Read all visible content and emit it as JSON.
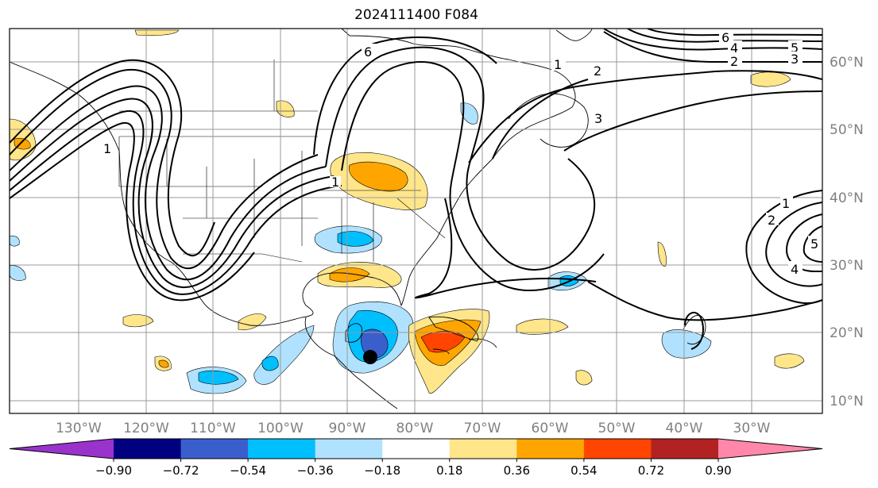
{
  "title": "2024111400 F084",
  "map": {
    "lon_labels": [
      "130°W",
      "120°W",
      "110°W",
      "100°W",
      "90°W",
      "80°W",
      "70°W",
      "60°W",
      "50°W",
      "40°W",
      "30°W"
    ],
    "lat_labels": [
      "60°N",
      "50°N",
      "40°N",
      "30°N",
      "20°N",
      "10°N"
    ],
    "contour_labels": [
      "1",
      "2",
      "3",
      "4",
      "5",
      "6"
    ],
    "storm_marker": "filled-black-dot"
  },
  "colorbar": {
    "colors": [
      "#9933cc",
      "#000080",
      "#3a5fcd",
      "#00bfff",
      "#b0e2ff",
      "#ffffff",
      "#ffe68a",
      "#ffa500",
      "#ff4500",
      "#b22222",
      "#ff88aa"
    ],
    "ticks": [
      "−0.90",
      "−0.72",
      "−0.54",
      "−0.36",
      "−0.18",
      "0.18",
      "0.36",
      "0.54",
      "0.72",
      "0.90"
    ]
  }
}
